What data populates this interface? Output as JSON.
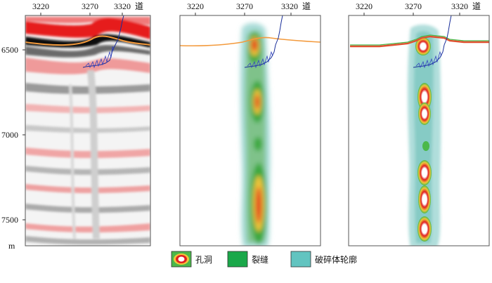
{
  "panels": [
    {
      "id": "seismic",
      "top_ticks": [
        "3220",
        "3270",
        "3320"
      ],
      "trace_label": "道",
      "depth_ticks": [
        "6500",
        "7000",
        "7500"
      ],
      "depth_unit": "m"
    },
    {
      "id": "attribute",
      "top_ticks": [
        "3220",
        "3270",
        "3320"
      ],
      "trace_label": "道"
    },
    {
      "id": "classified",
      "top_ticks": [
        "3220",
        "3270",
        "3320"
      ],
      "trace_label": "道"
    }
  ],
  "legend": [
    {
      "label": "孔洞",
      "swatch": "cave",
      "color": "#e02020"
    },
    {
      "label": "裂缝",
      "swatch": "fracture",
      "color": "#1aa84a"
    },
    {
      "label": "破碎体轮廓",
      "swatch": "broken-body",
      "color": "#62c4c0"
    }
  ],
  "colors": {
    "horizon_line": "#f39a3c",
    "well_curve": "#1a2f9a",
    "seismic_red": "#e51f1f",
    "seismic_black": "#000000"
  }
}
